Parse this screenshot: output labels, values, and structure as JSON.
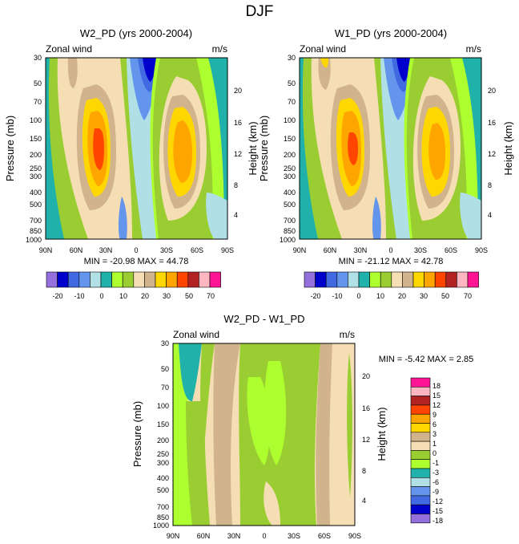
{
  "chart_data": {
    "type": "contour",
    "suptitle": "DJF",
    "panels": [
      {
        "title": "W2_PD (yrs 2000-2004)",
        "left_label": "Zonal wind",
        "right_label": "m/s",
        "xlabel": "",
        "ylabel": "Pressure (mb)",
        "ylabel_right": "Height (km)",
        "x_ticks": [
          "90N",
          "60N",
          "30N",
          "0",
          "30S",
          "60S",
          "90S"
        ],
        "y_ticks": [
          "30",
          "50",
          "70",
          "100",
          "150",
          "200",
          "250",
          "300",
          "400",
          "500",
          "700",
          "850",
          "1000"
        ],
        "height_ticks": [
          "20",
          "16",
          "12",
          "8",
          "4"
        ],
        "stats": "MIN = -20.98  MAX =  44.78",
        "min": -20.98,
        "max": 44.78
      },
      {
        "title": "W1_PD (yrs 2000-2004)",
        "left_label": "Zonal wind",
        "right_label": "m/s",
        "xlabel": "",
        "ylabel": "Pressure (mb)",
        "ylabel_right": "Height (km)",
        "x_ticks": [
          "90N",
          "60N",
          "30N",
          "0",
          "30S",
          "60S",
          "90S"
        ],
        "y_ticks": [
          "30",
          "50",
          "70",
          "100",
          "150",
          "200",
          "250",
          "300",
          "400",
          "500",
          "700",
          "850",
          "1000"
        ],
        "height_ticks": [
          "20",
          "16",
          "12",
          "8",
          "4"
        ],
        "stats": "MIN = -21.12  MAX =  42.78",
        "min": -21.12,
        "max": 42.78
      },
      {
        "title": "W2_PD - W1_PD",
        "left_label": "Zonal wind",
        "right_label": "m/s",
        "xlabel": "",
        "ylabel": "Pressure (mb)",
        "ylabel_right": "Height (km)",
        "x_ticks": [
          "90N",
          "60N",
          "30N",
          "0",
          "30S",
          "60S",
          "90S"
        ],
        "y_ticks": [
          "30",
          "50",
          "70",
          "100",
          "150",
          "200",
          "250",
          "300",
          "400",
          "500",
          "700",
          "850",
          "1000"
        ],
        "height_ticks": [
          "20",
          "16",
          "12",
          "8",
          "4"
        ],
        "stats": "MIN =  -5.42  MAX =   2.85",
        "min": -5.42,
        "max": 2.85
      }
    ],
    "colorbar_top": {
      "colors": [
        "#9370DB",
        "#0000CD",
        "#4169E1",
        "#6495ED",
        "#B0E0E6",
        "#20B2AA",
        "#ADFF2F",
        "#9ACD32",
        "#F5DEB3",
        "#D2B48C",
        "#FFD700",
        "#FFA500",
        "#FF4500",
        "#B22222",
        "#FFB6C1",
        "#FF1493"
      ],
      "labels": [
        "-20",
        "-10",
        "0",
        "10",
        "20",
        "30",
        "50",
        "70"
      ]
    },
    "colorbar_diff": {
      "colors": [
        "#9370DB",
        "#0000CD",
        "#4169E1",
        "#6495ED",
        "#B0E0E6",
        "#20B2AA",
        "#ADFF2F",
        "#9ACD32",
        "#F5DEB3",
        "#D2B48C",
        "#FFD700",
        "#FFA500",
        "#FF4500",
        "#B22222",
        "#FFB6C1",
        "#FF1493"
      ],
      "labels": [
        "18",
        "15",
        "12",
        "9",
        "6",
        "3",
        "1",
        "0",
        "-1",
        "-3",
        "-6",
        "-9",
        "-12",
        "-15",
        "-18"
      ]
    }
  },
  "colors": {
    "teal": "#20B2AA",
    "lightblue": "#B0E0E6",
    "cornflower": "#6495ED",
    "royal": "#4169E1",
    "navy": "#0000CD",
    "purple": "#9370DB",
    "yellowgreen": "#9ACD32",
    "greenyellow": "#ADFF2F",
    "wheat": "#F5DEB3",
    "tan": "#D2B48C",
    "gold": "#FFD700",
    "orange": "#FFA500",
    "orangered": "#FF4500"
  }
}
